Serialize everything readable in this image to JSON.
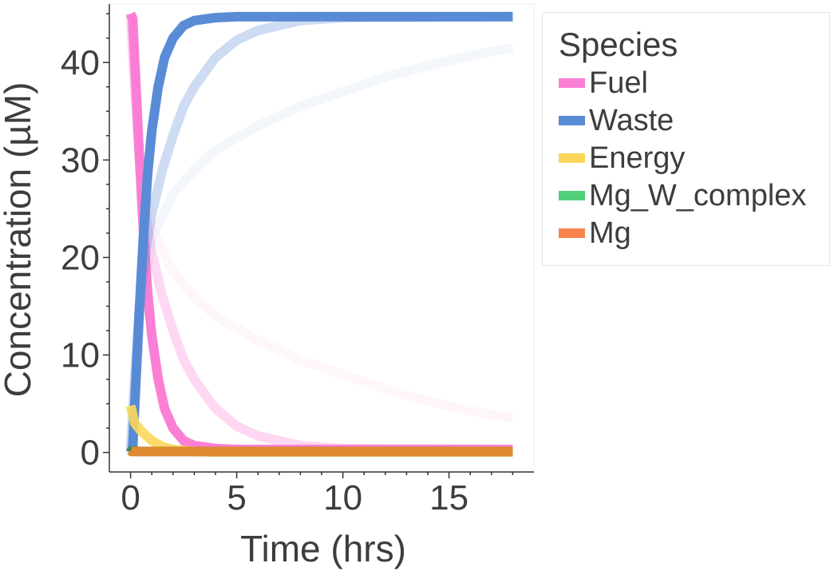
{
  "chart_data": {
    "type": "line",
    "xlabel": "Time (hrs)",
    "ylabel": "Concentration (µM)",
    "xlim": [
      -1,
      19
    ],
    "ylim": [
      -2,
      46
    ],
    "x_ticks": [
      0,
      5,
      10,
      15
    ],
    "y_ticks": [
      0,
      10,
      20,
      30,
      40
    ],
    "grid": false,
    "legend": {
      "title": "Species",
      "placement": "right",
      "entries": [
        {
          "name": "Fuel",
          "color": "#fb7fd4"
        },
        {
          "name": "Waste",
          "color": "#5a8bd6"
        },
        {
          "name": "Energy",
          "color": "#fdd75b"
        },
        {
          "name": "Mg_W_complex",
          "color": "#52cf7b"
        },
        {
          "name": "Mg",
          "color": "#f7834f"
        }
      ]
    },
    "series": [
      {
        "species": "Fuel",
        "color": "#fb7fd4",
        "opacity": 1.0,
        "x": [
          0,
          0.1,
          0.2,
          0.4,
          0.6,
          0.8,
          1.0,
          1.3,
          1.6,
          2.0,
          2.5,
          3.0,
          4.0,
          5.0,
          18
        ],
        "y": [
          45,
          44.5,
          40,
          31,
          23,
          16.5,
          12,
          7.5,
          4.5,
          2.5,
          1.2,
          0.7,
          0.4,
          0.3,
          0.3
        ]
      },
      {
        "species": "Fuel",
        "color": "#fb7fd4",
        "opacity": 0.3,
        "x": [
          0,
          0.2,
          0.5,
          0.8,
          1.0,
          1.5,
          2.0,
          2.5,
          3.0,
          4.0,
          5.0,
          6.0,
          8.0,
          10.0,
          18
        ],
        "y": [
          45,
          37,
          28,
          23,
          20.5,
          16,
          12.5,
          9.5,
          7.5,
          4.5,
          2.7,
          1.7,
          0.7,
          0.4,
          0.3
        ]
      },
      {
        "species": "Fuel",
        "color": "#fb7fd4",
        "opacity": 0.07,
        "x": [
          0,
          0.5,
          1.0,
          2.0,
          3.0,
          4.0,
          6.0,
          8.0,
          10.0,
          12.0,
          14.0,
          16.0,
          18
        ],
        "y": [
          45,
          30,
          23,
          18.5,
          16,
          14,
          11.5,
          9.5,
          8,
          6.5,
          5.3,
          4.3,
          3.5
        ]
      },
      {
        "species": "Waste",
        "color": "#5a8bd6",
        "opacity": 1.0,
        "x": [
          0,
          0.1,
          0.2,
          0.4,
          0.6,
          0.8,
          1.0,
          1.3,
          1.6,
          2.0,
          2.5,
          3.0,
          4.0,
          5.0,
          18
        ],
        "y": [
          0,
          0.5,
          5,
          14,
          22,
          28.5,
          33,
          37.5,
          40.5,
          42.5,
          43.8,
          44.3,
          44.6,
          44.7,
          44.7
        ]
      },
      {
        "species": "Waste",
        "color": "#5a8bd6",
        "opacity": 0.3,
        "x": [
          0,
          0.2,
          0.5,
          0.8,
          1.0,
          1.5,
          2.0,
          2.5,
          3.0,
          4.0,
          5.0,
          6.0,
          8.0,
          10.0,
          18
        ],
        "y": [
          0,
          8,
          17,
          22,
          24.5,
          29,
          32.5,
          35.5,
          37.5,
          40.5,
          42.3,
          43.3,
          44.3,
          44.6,
          44.7
        ]
      },
      {
        "species": "Waste",
        "color": "#5a8bd6",
        "opacity": 0.07,
        "x": [
          0,
          0.5,
          1.0,
          2.0,
          3.0,
          4.0,
          6.0,
          8.0,
          10.0,
          12.0,
          14.0,
          16.0,
          18
        ],
        "y": [
          0,
          15,
          22,
          26.5,
          29,
          31,
          33.5,
          35.5,
          37,
          38.5,
          39.7,
          40.7,
          41.5
        ]
      },
      {
        "species": "Energy",
        "color": "#fdd75b",
        "opacity": 0.9,
        "x": [
          0,
          0.2,
          0.5,
          1.0,
          1.5,
          2.0,
          3.0,
          4.0,
          18
        ],
        "y": [
          4.8,
          3.0,
          2.2,
          1.2,
          0.6,
          0.3,
          0.1,
          0.05,
          0.05
        ]
      },
      {
        "species": "Mg_W_complex",
        "color": "#3c8a45",
        "opacity": 0.85,
        "x": [
          0,
          0.05,
          0.2,
          0.5,
          1.0,
          2.0,
          18
        ],
        "y": [
          0,
          0.2,
          0.15,
          0.1,
          0.1,
          0.1,
          0.1
        ]
      },
      {
        "species": "Mg",
        "color": "#de8a31",
        "opacity": 1.0,
        "x": [
          0,
          0.05,
          0.2,
          0.5,
          1.0,
          18
        ],
        "y": [
          0.2,
          0.1,
          0.1,
          0.1,
          0.1,
          0.1
        ]
      }
    ]
  }
}
